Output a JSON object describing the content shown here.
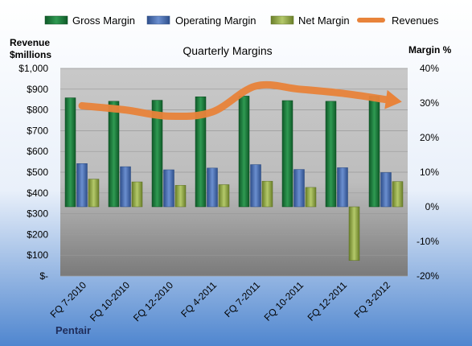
{
  "chart_data": {
    "type": "bar",
    "title": "Quarterly Margins",
    "company": "Pentair",
    "categories": [
      "FQ 7-2010",
      "FQ 10-2010",
      "FQ 12-2010",
      "FQ 4-2011",
      "FQ 7-2011",
      "FQ 10-2011",
      "FQ 12-2011",
      "FQ 3-2012"
    ],
    "left_axis": {
      "label_line1": "Revenue",
      "label_line2": "$millions",
      "range": [
        0,
        1000
      ],
      "ticks": [
        "$-",
        "$100",
        "$200",
        "$300",
        "$400",
        "$500",
        "$600",
        "$700",
        "$800",
        "$900",
        "$1,000"
      ]
    },
    "right_axis": {
      "label": "Margin %",
      "range": [
        -20,
        40
      ],
      "ticks": [
        "-20%",
        "-10%",
        "0%",
        "10%",
        "20%",
        "30%",
        "40%"
      ]
    },
    "series": [
      {
        "name": "Gross Margin",
        "axis": "right",
        "kind": "bar",
        "color": "#1f7a3c",
        "values": [
          31.5,
          30.5,
          30.8,
          31.8,
          32.0,
          30.7,
          30.5,
          32.0
        ]
      },
      {
        "name": "Operating Margin",
        "axis": "right",
        "kind": "bar",
        "color": "#4a6faf",
        "values": [
          12.5,
          11.6,
          10.7,
          11.2,
          12.2,
          10.8,
          11.3,
          9.9
        ]
      },
      {
        "name": "Net Margin",
        "axis": "right",
        "kind": "bar",
        "color": "#8fa84a",
        "values": [
          8.0,
          7.2,
          6.2,
          6.4,
          7.4,
          5.6,
          -15.5,
          7.3
        ]
      },
      {
        "name": "Revenues",
        "axis": "left",
        "kind": "line",
        "color": "#e8833a",
        "values": [
          820,
          800,
          770,
          790,
          915,
          900,
          880,
          850
        ]
      }
    ],
    "legend_position": "top",
    "grid": true
  }
}
